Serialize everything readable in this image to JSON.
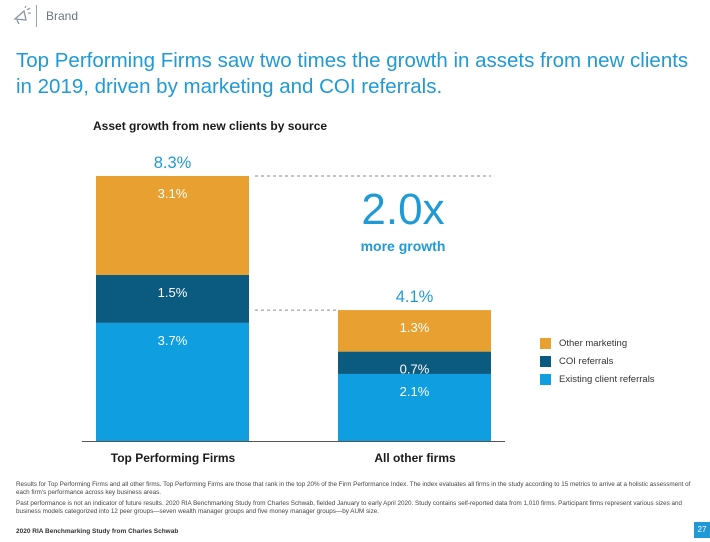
{
  "header": {
    "brand": "Brand",
    "icon": "megaphone-icon"
  },
  "title": "Top Performing Firms saw two times the growth in assets from new clients in 2019, driven by marketing and COI referrals.",
  "chart_data": {
    "type": "bar",
    "stacked": true,
    "title": "Asset growth from new clients by source",
    "categories": [
      "Top Performing Firms",
      "All other firms"
    ],
    "series": [
      {
        "name": "Existing client referrals",
        "values": [
          3.7,
          2.1
        ],
        "labels": [
          "3.7%",
          "2.1%"
        ],
        "color": "#0f9ee0"
      },
      {
        "name": "COI referrals",
        "values": [
          1.5,
          0.7
        ],
        "labels": [
          "1.5%",
          "0.7%"
        ],
        "color": "#0b5a80"
      },
      {
        "name": "Other marketing",
        "values": [
          3.1,
          1.3
        ],
        "labels": [
          "3.1%",
          "1.3%"
        ],
        "color": "#e8a030"
      }
    ],
    "totals": [
      8.3,
      4.1
    ],
    "total_labels": [
      "8.3%",
      "4.1%"
    ],
    "ylim": [
      0,
      8.3
    ],
    "legend_position": "right",
    "grid": false
  },
  "annotation": {
    "multiplier": "2.0x",
    "caption": "more growth"
  },
  "legend": [
    {
      "label": "Other marketing",
      "color": "#e8a030"
    },
    {
      "label": "COI referrals",
      "color": "#0b5a80"
    },
    {
      "label": "Existing client referrals",
      "color": "#0f9ee0"
    }
  ],
  "footnotes": [
    "Results for Top Performing Firms and all other firms. Top Performing Firms are those that rank in the top 20% of the Firm Performance Index. The index evaluates all firms in the study according to 15 metrics to arrive at a holistic assessment of each firm's performance across key business areas.",
    "Past performance is not an indicator of future results. 2020 RIA Benchmarking Study from Charles Schwab, fielded January to early April 2020. Study contains self-reported data from 1,010 firms. Participant firms represent various sizes and business models categorized into 12 peer groups—seven wealth manager groups and five money manager groups—by AUM size."
  ],
  "source": "2020 RIA Benchmarking Study from Charles Schwab",
  "page_number": "27"
}
